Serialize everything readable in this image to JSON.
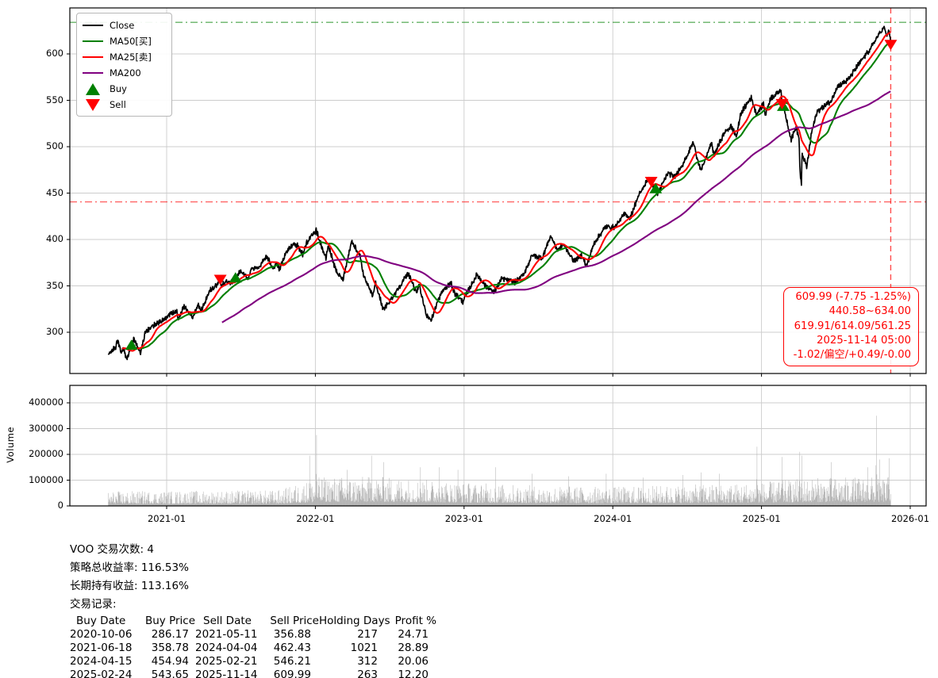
{
  "chart_data": {
    "type": "line",
    "symbol": "VOO",
    "xticks": [
      "2021-01",
      "2022-01",
      "2023-01",
      "2024-01",
      "2025-01",
      "2026-01"
    ],
    "price_panel": {
      "ylim": [
        255,
        650
      ],
      "yticks": [
        300,
        350,
        400,
        450,
        500,
        550,
        600
      ],
      "grid": true,
      "series": [
        {
          "name": "Close",
          "color": "#000000",
          "width": 1.7,
          "kind": "close"
        },
        {
          "name": "MA50[买]",
          "color": "#008000",
          "width": 2.1,
          "kind": "ma",
          "window_days": 50
        },
        {
          "name": "MA25[卖]",
          "color": "#ff0000",
          "width": 2.1,
          "kind": "ma",
          "window_days": 25
        },
        {
          "name": "MA200",
          "color": "#800080",
          "width": 2.1,
          "kind": "ma",
          "window_days": 200
        }
      ],
      "close_keypoints": [
        [
          "2020-08-10",
          276
        ],
        [
          "2020-08-28",
          284
        ],
        [
          "2020-09-02",
          292
        ],
        [
          "2020-09-11",
          278
        ],
        [
          "2020-09-16",
          284
        ],
        [
          "2020-09-24",
          271
        ],
        [
          "2020-10-06",
          286
        ],
        [
          "2020-10-12",
          293
        ],
        [
          "2020-10-28",
          277
        ],
        [
          "2020-11-09",
          299
        ],
        [
          "2020-11-24",
          306
        ],
        [
          "2020-12-17",
          312
        ],
        [
          "2021-01-08",
          319
        ],
        [
          "2021-01-26",
          323
        ],
        [
          "2021-01-29",
          312
        ],
        [
          "2021-02-12",
          328
        ],
        [
          "2021-03-04",
          316
        ],
        [
          "2021-03-17",
          330
        ],
        [
          "2021-03-25",
          324
        ],
        [
          "2021-04-16",
          345
        ],
        [
          "2021-04-29",
          349
        ],
        [
          "2021-05-11",
          357
        ],
        [
          "2021-05-13",
          350
        ],
        [
          "2021-05-27",
          355
        ],
        [
          "2021-06-03",
          352
        ],
        [
          "2021-06-18",
          359
        ],
        [
          "2021-07-02",
          366
        ],
        [
          "2021-07-19",
          357
        ],
        [
          "2021-07-26",
          368
        ],
        [
          "2021-08-17",
          371
        ],
        [
          "2021-09-02",
          382
        ],
        [
          "2021-09-20",
          369
        ],
        [
          "2021-09-27",
          375
        ],
        [
          "2021-10-04",
          367
        ],
        [
          "2021-10-21",
          386
        ],
        [
          "2021-11-08",
          396
        ],
        [
          "2021-11-19",
          393
        ],
        [
          "2021-12-01",
          384
        ],
        [
          "2021-12-10",
          397
        ],
        [
          "2021-12-27",
          406
        ],
        [
          "2022-01-03",
          410
        ],
        [
          "2022-01-27",
          379
        ],
        [
          "2022-02-02",
          394
        ],
        [
          "2022-02-23",
          364
        ],
        [
          "2022-03-08",
          357
        ],
        [
          "2022-03-29",
          398
        ],
        [
          "2022-04-20",
          382
        ],
        [
          "2022-04-29",
          359
        ],
        [
          "2022-05-20",
          339
        ],
        [
          "2022-05-27",
          353
        ],
        [
          "2022-06-16",
          324
        ],
        [
          "2022-07-08",
          338
        ],
        [
          "2022-08-16",
          364
        ],
        [
          "2022-09-06",
          342
        ],
        [
          "2022-09-12",
          351
        ],
        [
          "2022-09-30",
          319
        ],
        [
          "2022-10-12",
          313
        ],
        [
          "2022-10-28",
          334
        ],
        [
          "2022-11-10",
          345
        ],
        [
          "2022-11-30",
          353
        ],
        [
          "2022-12-07",
          343
        ],
        [
          "2022-12-28",
          333
        ],
        [
          "2023-01-13",
          346
        ],
        [
          "2023-02-02",
          362
        ],
        [
          "2023-02-24",
          350
        ],
        [
          "2023-03-13",
          343
        ],
        [
          "2023-04-03",
          358
        ],
        [
          "2023-05-04",
          354
        ],
        [
          "2023-05-25",
          362
        ],
        [
          "2023-06-16",
          383
        ],
        [
          "2023-07-10",
          380
        ],
        [
          "2023-07-31",
          404
        ],
        [
          "2023-08-18",
          388
        ],
        [
          "2023-09-01",
          395
        ],
        [
          "2023-09-27",
          377
        ],
        [
          "2023-10-17",
          383
        ],
        [
          "2023-10-27",
          371
        ],
        [
          "2023-11-17",
          397
        ],
        [
          "2023-12-14",
          414
        ],
        [
          "2024-01-05",
          413
        ],
        [
          "2024-01-31",
          428
        ],
        [
          "2024-02-13",
          423
        ],
        [
          "2024-03-01",
          445
        ],
        [
          "2024-03-28",
          466
        ],
        [
          "2024-04-04",
          462
        ],
        [
          "2024-04-15",
          455
        ],
        [
          "2024-04-19",
          448
        ],
        [
          "2024-05-15",
          472
        ],
        [
          "2024-05-31",
          467
        ],
        [
          "2024-06-28",
          487
        ],
        [
          "2024-07-16",
          505
        ],
        [
          "2024-07-25",
          489
        ],
        [
          "2024-08-05",
          474
        ],
        [
          "2024-08-30",
          504
        ],
        [
          "2024-09-06",
          491
        ],
        [
          "2024-09-30",
          514
        ],
        [
          "2024-10-17",
          522
        ],
        [
          "2024-10-31",
          511
        ],
        [
          "2024-11-11",
          536
        ],
        [
          "2024-12-06",
          553
        ],
        [
          "2024-12-19",
          535
        ],
        [
          "2025-01-06",
          546
        ],
        [
          "2025-01-10",
          534
        ],
        [
          "2025-01-23",
          552
        ],
        [
          "2025-02-19",
          561
        ],
        [
          "2025-02-21",
          546
        ],
        [
          "2025-02-24",
          544
        ],
        [
          "2025-03-13",
          508
        ],
        [
          "2025-03-25",
          521
        ],
        [
          "2025-04-02",
          509
        ],
        [
          "2025-04-04",
          475
        ],
        [
          "2025-04-08",
          456
        ],
        [
          "2025-04-09",
          493
        ],
        [
          "2025-04-21",
          478
        ],
        [
          "2025-05-02",
          515
        ],
        [
          "2025-05-16",
          538
        ],
        [
          "2025-06-06",
          545
        ],
        [
          "2025-06-20",
          549
        ],
        [
          "2025-07-03",
          564
        ],
        [
          "2025-07-31",
          572
        ],
        [
          "2025-08-22",
          586
        ],
        [
          "2025-09-15",
          600
        ],
        [
          "2025-09-26",
          606
        ],
        [
          "2025-10-08",
          616
        ],
        [
          "2025-10-28",
          629
        ],
        [
          "2025-11-04",
          619
        ],
        [
          "2025-11-10",
          626
        ],
        [
          "2025-11-13",
          617
        ],
        [
          "2025-11-14",
          610
        ]
      ],
      "hlines": [
        {
          "value": 634.0,
          "color": "#008000",
          "style": "dashdot",
          "opacity": 0.6
        },
        {
          "value": 440.58,
          "color": "#ff0000",
          "style": "dashdot",
          "opacity": 0.6
        }
      ],
      "vline": {
        "date": "2025-11-14",
        "color": "#ff0000",
        "style": "dashed",
        "opacity": 0.7
      }
    },
    "volume_panel": {
      "ylabel": "Volume",
      "ylim": [
        0,
        468000
      ],
      "yticks": [
        0,
        100000,
        200000,
        300000,
        400000
      ],
      "bar_color": "#b5b5b5",
      "baseline_keypoints": [
        [
          "2020-08-10",
          26000
        ],
        [
          "2021-03-01",
          27000
        ],
        [
          "2021-10-01",
          28000
        ],
        [
          "2022-01-15",
          52000
        ],
        [
          "2022-07-01",
          52000
        ],
        [
          "2023-01-01",
          42000
        ],
        [
          "2023-07-01",
          36000
        ],
        [
          "2024-01-01",
          34000
        ],
        [
          "2024-08-01",
          38000
        ],
        [
          "2025-01-01",
          42000
        ],
        [
          "2025-05-01",
          50000
        ],
        [
          "2025-11-14",
          52000
        ]
      ],
      "spikes": [
        [
          "2021-12-17",
          195000
        ],
        [
          "2022-01-04",
          275000
        ],
        [
          "2022-03-18",
          140000
        ],
        [
          "2022-05-17",
          195000
        ],
        [
          "2022-06-17",
          170000
        ],
        [
          "2022-09-16",
          150000
        ],
        [
          "2022-11-01",
          150000
        ],
        [
          "2022-12-16",
          140000
        ],
        [
          "2023-03-17",
          150000
        ],
        [
          "2023-06-16",
          125000
        ],
        [
          "2023-09-15",
          115000
        ],
        [
          "2023-12-15",
          125000
        ],
        [
          "2024-03-15",
          110000
        ],
        [
          "2024-06-21",
          120000
        ],
        [
          "2024-08-05",
          130000
        ],
        [
          "2024-09-20",
          125000
        ],
        [
          "2024-12-20",
          230000
        ],
        [
          "2025-02-21",
          190000
        ],
        [
          "2025-04-04",
          210000
        ],
        [
          "2025-04-09",
          195000
        ],
        [
          "2025-06-20",
          170000
        ],
        [
          "2025-09-19",
          150000
        ],
        [
          "2025-10-09",
          350000
        ],
        [
          "2025-10-17",
          180000
        ],
        [
          "2025-11-10",
          185000
        ]
      ]
    },
    "signals": {
      "buys": [
        [
          "2020-10-06",
          286.17
        ],
        [
          "2021-06-18",
          358.78
        ],
        [
          "2024-04-15",
          454.94
        ],
        [
          "2025-02-24",
          543.65
        ]
      ],
      "sells": [
        [
          "2021-05-11",
          356.88
        ],
        [
          "2024-04-04",
          462.43
        ],
        [
          "2025-02-21",
          546.21
        ],
        [
          "2025-11-14",
          609.99
        ]
      ],
      "buy_color": "#008000",
      "sell_color": "#ff0000"
    }
  },
  "legend": {
    "items": [
      {
        "label": "Close",
        "swatch": "line",
        "color": "#000000"
      },
      {
        "label": "MA50[买]",
        "swatch": "line",
        "color": "#008000"
      },
      {
        "label": "MA25[卖]",
        "swatch": "line",
        "color": "#ff0000"
      },
      {
        "label": "MA200",
        "swatch": "line",
        "color": "#800080"
      },
      {
        "label": "Buy",
        "swatch": "triangle-up",
        "color": "#008000"
      },
      {
        "label": "Sell",
        "swatch": "triangle-down",
        "color": "#ff0000"
      }
    ]
  },
  "annotation": {
    "color": "#ff0000",
    "lines": [
      "609.99 (-7.75 -1.25%)",
      "440.58~634.00",
      "619.91/614.09/561.25",
      "2025-11-14 05:00",
      "-1.02/偏空/+0.49/-0.00"
    ]
  },
  "stats": {
    "summary": [
      "VOO 交易次数: 4",
      "策略总收益率: 116.53%",
      "长期持有收益: 113.16%",
      "交易记录:"
    ],
    "table": {
      "header": [
        "Buy Date",
        "Buy Price",
        "Sell Date",
        "Sell Price",
        "Holding Days",
        "Profit %"
      ],
      "rows": [
        [
          "2020-10-06",
          "286.17",
          "2021-05-11",
          "356.88",
          "217",
          "24.71"
        ],
        [
          "2021-06-18",
          "358.78",
          "2024-04-04",
          "462.43",
          "1021",
          "28.89"
        ],
        [
          "2024-04-15",
          "454.94",
          "2025-02-21",
          "546.21",
          "312",
          "20.06"
        ],
        [
          "2025-02-24",
          "543.65",
          "2025-11-14",
          "609.99",
          "263",
          "12.20"
        ]
      ]
    }
  }
}
